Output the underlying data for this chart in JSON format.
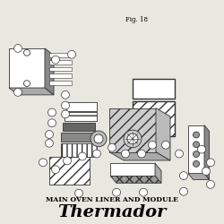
{
  "title": "Thermador",
  "subtitle": "MAIN OVEN LINER AND MODULE",
  "fig_label": "Fig. 18",
  "bg_color": "#e8e8e0",
  "title_fontsize": 14,
  "subtitle_fontsize": 5.5,
  "fig_label_fontsize": 5
}
